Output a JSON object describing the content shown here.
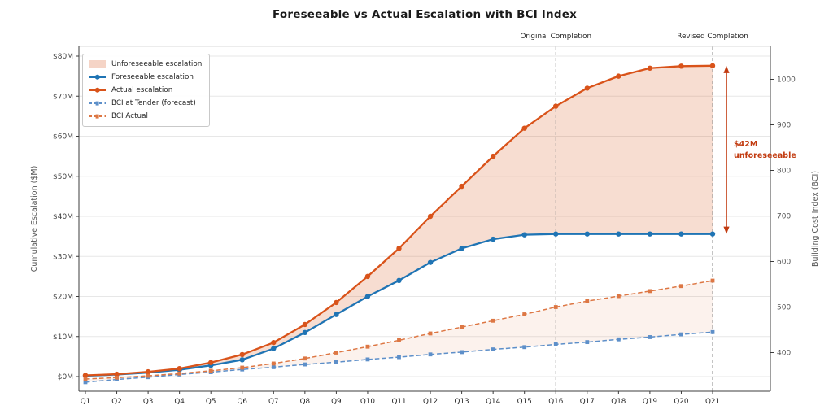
{
  "title": "Foreseeable vs Actual Escalation with BCI Index",
  "annotations": {
    "original_completion": "Original Completion",
    "revised_completion": "Revised Completion",
    "unforeseeable_callout": "$42M\nunforeseeable"
  },
  "legend": {
    "items": [
      {
        "label": "Unforeseeable escalation",
        "type": "patch",
        "color": "rgba(217,83,26,0.25)"
      },
      {
        "label": "Foreseeable escalation",
        "type": "line",
        "color": "#1f74b4"
      },
      {
        "label": "Actual escalation",
        "type": "line",
        "color": "#d9531a"
      },
      {
        "label": "BCI at Tender (forecast)",
        "type": "dash",
        "color": "#5d8fc9"
      },
      {
        "label": "BCI Actual",
        "type": "dash",
        "color": "#dd7744"
      }
    ]
  },
  "colors": {
    "foreseeable_blue": "#1f74b4",
    "actual_orange": "#d9531a",
    "bci_tender_blue": "#5d8fc9",
    "bci_actual_orange": "#dd7744",
    "unforeseeable_fill": "rgba(217,83,26,0.20)",
    "bci_band_fill": "rgba(217,83,26,0.08)",
    "annotation_red": "#c23b10",
    "completion_line_gray": "#8a8a8a",
    "gridline": "#e7e7e7",
    "spine_dark": "#3c3c3c",
    "spine_top": "#d8d8d8"
  },
  "chart_data": {
    "type": "line",
    "title": "Foreseeable vs Actual Escalation with BCI Index",
    "categories": [
      "Q1",
      "Q2",
      "Q3",
      "Q4",
      "Q5",
      "Q6",
      "Q7",
      "Q8",
      "Q9",
      "Q10",
      "Q11",
      "Q12",
      "Q13",
      "Q14",
      "Q15",
      "Q16",
      "Q17",
      "Q18",
      "Q19",
      "Q20",
      "Q21"
    ],
    "y_left": {
      "label": "Cumulative Escalation ($M)",
      "tick_values": [
        0,
        10,
        20,
        30,
        40,
        50,
        60,
        70,
        80
      ],
      "tick_labels": [
        "$0M",
        "$10M",
        "$20M",
        "$30M",
        "$40M",
        "$50M",
        "$60M",
        "$70M",
        "$80M"
      ]
    },
    "y_right": {
      "label": "Building Cost Index (BCI)",
      "tick_values": [
        400,
        500,
        600,
        700,
        800,
        900,
        1000
      ],
      "tick_labels": [
        "400",
        "500",
        "600",
        "700",
        "800",
        "900",
        "1000"
      ]
    },
    "series": [
      {
        "name": "Foreseeable escalation",
        "axis": "left",
        "style": "solid",
        "marker": "circle",
        "color": "#1f74b4",
        "values": [
          0.2,
          0.5,
          1.0,
          1.7,
          2.8,
          4.2,
          7.0,
          11.0,
          15.5,
          20.0,
          24.0,
          28.5,
          32.0,
          34.3,
          35.4,
          35.6,
          35.6,
          35.6,
          35.6,
          35.6,
          35.6
        ]
      },
      {
        "name": "Actual escalation",
        "axis": "left",
        "style": "solid",
        "marker": "circle",
        "color": "#d9531a",
        "values": [
          0.3,
          0.6,
          1.2,
          2.0,
          3.5,
          5.5,
          8.5,
          13.0,
          18.5,
          25.0,
          32.0,
          40.0,
          47.5,
          55.0,
          62.0,
          67.5,
          72.0,
          75.0,
          77.0,
          77.5,
          77.6
        ]
      },
      {
        "name": "BCI at Tender (forecast)",
        "axis": "right",
        "style": "dashed",
        "marker": "square",
        "color": "#5d8fc9",
        "values": [
          335,
          341,
          346,
          352,
          357,
          363,
          368,
          374,
          379,
          385,
          390,
          396,
          401,
          407,
          412,
          418,
          423,
          429,
          434,
          440,
          445
        ]
      },
      {
        "name": "BCI Actual",
        "axis": "right",
        "style": "dashed",
        "marker": "square",
        "color": "#dd7744",
        "values": [
          342,
          345,
          349,
          354,
          360,
          367,
          376,
          387,
          400,
          413,
          427,
          442,
          456,
          470,
          484,
          500,
          513,
          524,
          535,
          546,
          558
        ]
      }
    ],
    "fills": [
      {
        "name": "Unforeseeable escalation",
        "between": [
          "Actual escalation",
          "Foreseeable escalation"
        ],
        "color": "rgba(217,83,26,0.20)"
      },
      {
        "name": "BCI band",
        "between": [
          "BCI Actual",
          "BCI at Tender (forecast)"
        ],
        "color": "rgba(217,83,26,0.08)"
      }
    ],
    "vlines": [
      {
        "at": "Q16",
        "label": "Original Completion"
      },
      {
        "at": "Q21",
        "label": "Revised Completion"
      }
    ],
    "arrow": {
      "after": "Q21",
      "from": 77.6,
      "to": 35.6,
      "label": "$42M\nunforeseeable",
      "color": "#c23b10"
    }
  }
}
